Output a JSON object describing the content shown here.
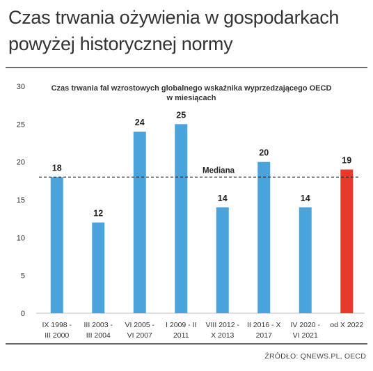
{
  "headline": {
    "line1": "Czas trwania ożywienia w gospodarkach",
    "line2": "powyżej historycznej normy"
  },
  "source": "ŹRÓDŁO: QNEWS.PL, OECD",
  "colors": {
    "bar": "#4aa3db",
    "highlight": "#e83a2c"
  },
  "chart_data": {
    "type": "bar",
    "title": [
      "Czas trwania fal wzrostowych globalnego wskaźnika wyprzedzającego OECD",
      "w miesiącach"
    ],
    "categories": [
      [
        "IX 1998 -",
        "III 2000"
      ],
      [
        "III 2003 -",
        "III 2004"
      ],
      [
        "VI 2005 -",
        "VI 2007"
      ],
      [
        "I 2009 - II",
        "2011"
      ],
      [
        "VIII 2012 -",
        "X 2013"
      ],
      [
        "II 2016 - X",
        "2017"
      ],
      [
        "IV 2020 -",
        "VI 2021"
      ],
      [
        "od X 2022"
      ]
    ],
    "values": [
      18,
      12,
      24,
      25,
      14,
      20,
      14,
      19
    ],
    "highlight_index": 7,
    "ylim": [
      0,
      30
    ],
    "yticks": [
      0,
      5,
      10,
      15,
      20,
      25,
      30
    ],
    "reference_line": {
      "label": "Mediana",
      "value": 18,
      "style": "dashed"
    },
    "grid": false,
    "xlabel": "",
    "ylabel": ""
  }
}
